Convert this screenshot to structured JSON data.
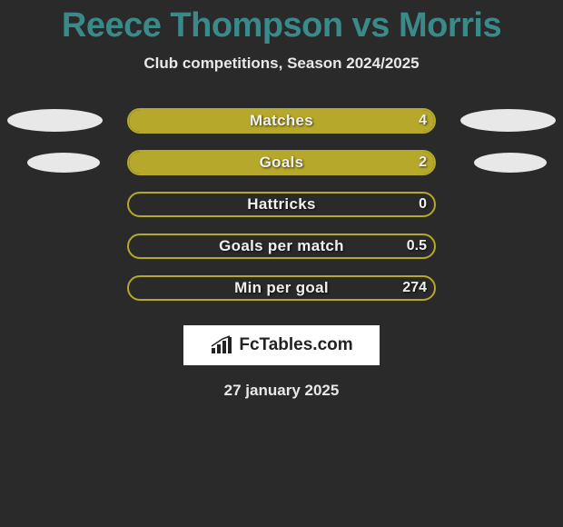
{
  "title": "Reece Thompson vs Morris",
  "subtitle": "Club competitions, Season 2024/2025",
  "date": "27 january 2025",
  "colors": {
    "background": "#2a2a2a",
    "title": "#3a8a8a",
    "text": "#e8e8e8",
    "bar_fill": "#b5a82a",
    "bar_border": "#b5a82a",
    "ellipse": "#e8e8e8",
    "logo_bg": "#ffffff",
    "logo_text": "#222222"
  },
  "bar": {
    "track_width": 340,
    "track_height": 28,
    "border_radius": 16,
    "border_width": 2
  },
  "ellipses": [
    {
      "row": 0,
      "side": "left",
      "size": "large"
    },
    {
      "row": 0,
      "side": "right",
      "size": "large"
    },
    {
      "row": 1,
      "side": "left",
      "size": "small"
    },
    {
      "row": 1,
      "side": "right",
      "size": "small"
    }
  ],
  "stats": [
    {
      "label": "Matches",
      "value": "4",
      "fill_left_pct": 100,
      "fill_right_pct": 0
    },
    {
      "label": "Goals",
      "value": "2",
      "fill_left_pct": 100,
      "fill_right_pct": 0
    },
    {
      "label": "Hattricks",
      "value": "0",
      "fill_left_pct": 0,
      "fill_right_pct": 0
    },
    {
      "label": "Goals per match",
      "value": "0.5",
      "fill_left_pct": 0,
      "fill_right_pct": 0
    },
    {
      "label": "Min per goal",
      "value": "274",
      "fill_left_pct": 0,
      "fill_right_pct": 0
    }
  ],
  "logo": {
    "text": "FcTables.com"
  }
}
